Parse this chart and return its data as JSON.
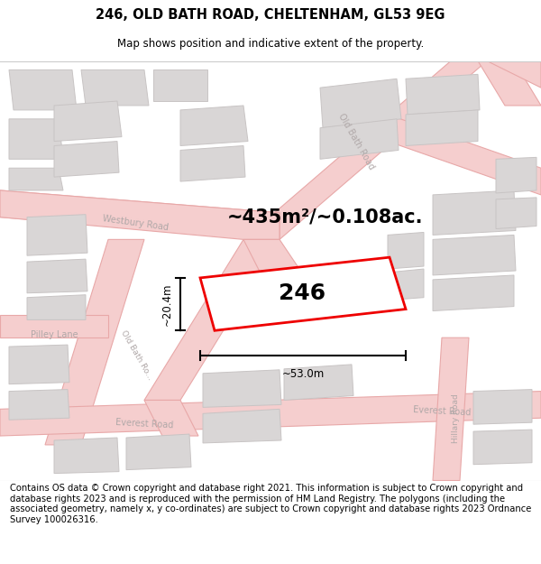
{
  "title": "246, OLD BATH ROAD, CHELTENHAM, GL53 9EG",
  "subtitle": "Map shows position and indicative extent of the property.",
  "footer": "Contains OS data © Crown copyright and database right 2021. This information is subject to Crown copyright and database rights 2023 and is reproduced with the permission of HM Land Registry. The polygons (including the associated geometry, namely x, y co-ordinates) are subject to Crown copyright and database rights 2023 Ordnance Survey 100026316.",
  "area_text": "~435m²/~0.108ac.",
  "width_text": "~53.0m",
  "height_text": "~20.4m",
  "plot_number": "246",
  "map_bg": "#ebebeb",
  "road_fill": "#f5cece",
  "road_edge": "#e8a8a8",
  "block_fill": "#d9d6d6",
  "block_edge": "#c8c4c4",
  "plot_fill": "#ffffff",
  "plot_edge": "#ee0000",
  "label_color": "#b0a8a8",
  "title_fontsize": 10.5,
  "subtitle_fontsize": 8.5,
  "footer_fontsize": 7.2,
  "area_fontsize": 15,
  "dim_fontsize": 8.5,
  "number_fontsize": 18,
  "road_lw": 0.8,
  "block_lw": 0.7,
  "plot_lw": 2.0
}
